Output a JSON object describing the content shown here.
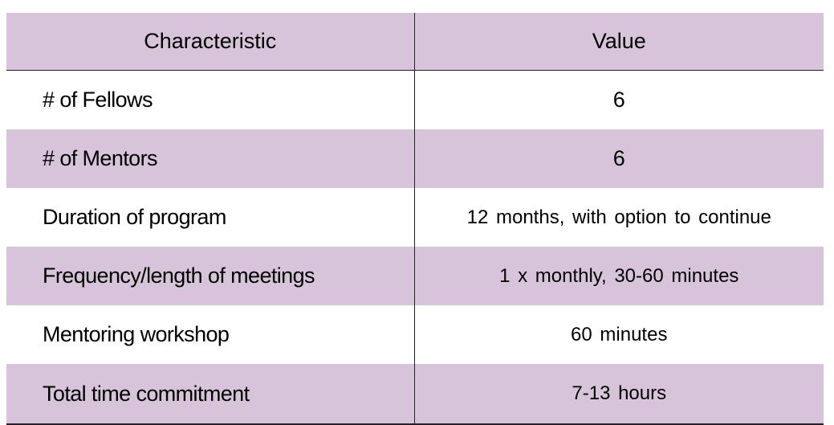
{
  "table": {
    "header": {
      "characteristic": "Characteristic",
      "value": "Value"
    },
    "rows": [
      {
        "characteristic": "# of Fellows",
        "value": "6"
      },
      {
        "characteristic": "# of Mentors",
        "value": "6"
      },
      {
        "characteristic": "Duration of program",
        "value": "12 months, with option to continue"
      },
      {
        "characteristic": "Frequency/length of meetings",
        "value": "1 x monthly, 30-60 minutes"
      },
      {
        "characteristic": "Mentoring workshop",
        "value": "60 minutes"
      },
      {
        "characteristic": "Total time commitment",
        "value": "7-13 hours"
      }
    ]
  },
  "colors": {
    "shaded_row": "#d7c4da",
    "plain_row": "#ffffff",
    "rule": "#222222"
  }
}
